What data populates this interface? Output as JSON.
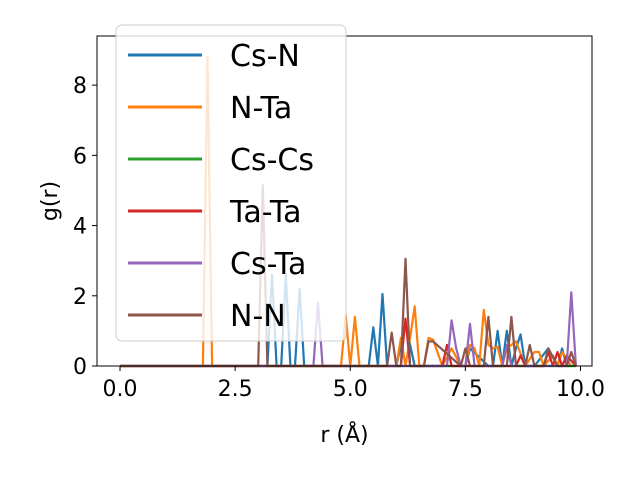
{
  "chart_data": {
    "type": "line",
    "title": "",
    "xlabel": "r (Å)",
    "ylabel": "g(r)",
    "xlim": [
      -0.5,
      10.25
    ],
    "ylim": [
      0,
      9.4
    ],
    "xticks": [
      0.0,
      2.5,
      5.0,
      7.5,
      10.0
    ],
    "xtick_labels": [
      "0.0",
      "2.5",
      "5.0",
      "7.5",
      "10.0"
    ],
    "yticks": [
      0,
      2,
      4,
      6,
      8
    ],
    "ytick_labels": [
      "0",
      "2",
      "4",
      "6",
      "8"
    ],
    "grid": false,
    "legend_position": "top-left",
    "series": [
      {
        "name": "Cs-N",
        "color": "#1f77b4",
        "x": [
          0,
          3.0,
          3.1,
          3.2,
          3.3,
          3.4,
          3.5,
          3.6,
          3.7,
          3.8,
          3.9,
          4.0,
          5.4,
          5.5,
          5.6,
          5.7,
          5.8,
          6.0,
          6.2,
          6.4,
          7.0,
          7.5,
          7.6,
          8.0,
          8.1,
          8.2,
          8.3,
          8.4,
          8.5,
          8.6,
          8.7,
          8.8,
          9.0,
          9.3,
          9.5,
          9.6,
          9.7,
          9.8
        ],
        "y": [
          0,
          0,
          0,
          0,
          2.6,
          0,
          0,
          2.6,
          0,
          0,
          2.2,
          0,
          0,
          1.1,
          0,
          2.05,
          0,
          0,
          1.2,
          0,
          0,
          0,
          0.5,
          0,
          0,
          1.0,
          0,
          1.0,
          0,
          0.5,
          0.9,
          0,
          0,
          0.5,
          0,
          0.5,
          0,
          0
        ]
      },
      {
        "name": "N-Ta",
        "color": "#ff7f0e",
        "x": [
          0,
          1.8,
          1.9,
          2.0,
          4.8,
          4.9,
          5.0,
          5.1,
          5.2,
          6.0,
          6.1,
          6.2,
          6.3,
          6.4,
          6.5,
          6.6,
          6.7,
          6.8,
          7.0,
          7.2,
          7.4,
          7.5,
          7.6,
          7.7,
          7.8,
          7.9,
          8.0,
          8.1,
          8.2,
          8.3,
          8.4,
          8.6,
          8.8,
          9.0,
          9.1,
          9.2,
          9.4,
          9.5,
          9.6,
          9.8,
          9.9
        ],
        "y": [
          0,
          0,
          8.8,
          0,
          0,
          1.45,
          0,
          1.4,
          0,
          0,
          0.8,
          0,
          0.8,
          1.7,
          0,
          0,
          0.8,
          0.75,
          0,
          0.5,
          0,
          0,
          0.6,
          0.5,
          0,
          1.6,
          0.6,
          0.5,
          0.55,
          0,
          0.5,
          0.7,
          0,
          0.4,
          0.4,
          0,
          0.3,
          0,
          0.4,
          0,
          0
        ]
      },
      {
        "name": "Cs-Cs",
        "color": "#2ca02c",
        "x": [
          0,
          9.9
        ],
        "y": [
          0,
          0
        ]
      },
      {
        "name": "Ta-Ta",
        "color": "#d62728",
        "x": [
          0,
          6.0,
          6.1,
          6.2,
          6.3,
          6.4,
          7.0,
          7.1,
          7.2,
          8.6,
          8.7,
          8.8,
          9.2,
          9.3,
          9.4,
          9.5,
          9.6,
          9.7,
          9.9
        ],
        "y": [
          0,
          0,
          0,
          1.35,
          0,
          0,
          0,
          0.6,
          0,
          0,
          0.3,
          0,
          0,
          0.4,
          0,
          0.4,
          0,
          0.3,
          0
        ]
      },
      {
        "name": "Cs-Ta",
        "color": "#9467bd",
        "x": [
          0,
          4.2,
          4.3,
          4.4,
          7.0,
          7.1,
          7.2,
          7.3,
          7.4,
          7.5,
          7.6,
          7.7,
          8.3,
          8.4,
          8.5,
          9.6,
          9.7,
          9.8,
          9.9
        ],
        "y": [
          0,
          0,
          1.8,
          0,
          0,
          0,
          1.3,
          0.5,
          0,
          0,
          1.2,
          0,
          0,
          0.6,
          0,
          0,
          0,
          2.1,
          0
        ]
      },
      {
        "name": "N-N",
        "color": "#8c564b",
        "x": [
          0,
          3.0,
          3.1,
          3.2,
          3.3,
          5.8,
          5.9,
          6.0,
          6.1,
          6.2,
          6.3,
          6.6,
          6.7,
          6.8,
          7.4,
          7.5,
          7.6,
          7.9,
          8.0,
          8.1,
          8.4,
          8.5,
          8.6,
          8.8,
          8.9,
          9.0,
          9.2,
          9.3,
          9.5,
          9.7,
          9.8,
          9.9
        ],
        "y": [
          0,
          0,
          5.15,
          0,
          0,
          0,
          0.95,
          0,
          0,
          3.05,
          0,
          0,
          0.7,
          0.7,
          0,
          0.5,
          0,
          0,
          1.4,
          0,
          0,
          1.4,
          0,
          0,
          0.6,
          0,
          0,
          0.5,
          0,
          0,
          0.4,
          0
        ]
      }
    ]
  }
}
